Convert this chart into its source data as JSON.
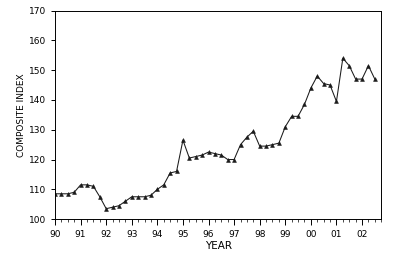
{
  "x": [
    1990.0,
    1990.25,
    1990.5,
    1990.75,
    1991.0,
    1991.25,
    1991.5,
    1991.75,
    1992.0,
    1992.25,
    1992.5,
    1992.75,
    1993.0,
    1993.25,
    1993.5,
    1993.75,
    1994.0,
    1994.25,
    1994.5,
    1994.75,
    1995.0,
    1995.25,
    1995.5,
    1995.75,
    1996.0,
    1996.25,
    1996.5,
    1996.75,
    1997.0,
    1997.25,
    1997.5,
    1997.75,
    1998.0,
    1998.25,
    1998.5,
    1998.75,
    1999.0,
    1999.25,
    1999.5,
    1999.75,
    2000.0,
    2000.25,
    2000.5,
    2000.75,
    2001.0,
    2001.25,
    2001.5,
    2001.75,
    2002.0,
    2002.25,
    2002.5
  ],
  "y": [
    108.5,
    108.5,
    108.5,
    109.0,
    111.5,
    111.5,
    111.0,
    107.5,
    103.5,
    104.0,
    104.5,
    106.0,
    107.5,
    107.5,
    107.5,
    108.0,
    110.0,
    111.5,
    115.5,
    116.0,
    126.5,
    120.5,
    121.0,
    121.5,
    122.5,
    122.0,
    121.5,
    120.0,
    120.0,
    125.0,
    127.5,
    129.5,
    124.5,
    124.5,
    125.0,
    125.5,
    131.0,
    134.5,
    134.5,
    138.5,
    144.0,
    148.0,
    145.5,
    145.0,
    139.5,
    154.0,
    151.5,
    147.0,
    147.0,
    151.5,
    147.0
  ],
  "xlabel": "YEAR",
  "ylabel": "COMPOSITE INDEX",
  "xlim": [
    1990,
    2002.75
  ],
  "ylim": [
    100,
    170
  ],
  "yticks": [
    100,
    110,
    120,
    130,
    140,
    150,
    160,
    170
  ],
  "xtick_labels": [
    "90",
    "91",
    "92",
    "93",
    "94",
    "95",
    "96",
    "97",
    "98",
    "99",
    "00",
    "01",
    "02"
  ],
  "xtick_positions": [
    1990,
    1991,
    1992,
    1993,
    1994,
    1995,
    1996,
    1997,
    1998,
    1999,
    2000,
    2001,
    2002
  ],
  "line_color": "#1a1a1a",
  "marker": "^",
  "marker_size": 2.8,
  "background_color": "#ffffff"
}
